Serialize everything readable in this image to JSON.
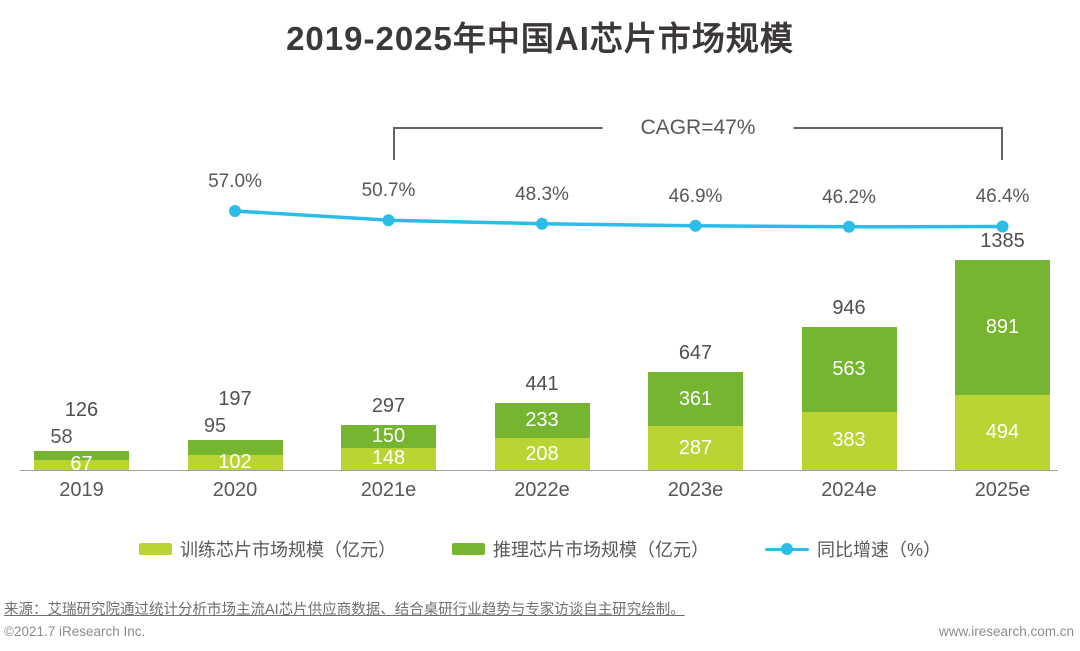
{
  "title": "2019-2025年中国AI芯片市场规模",
  "chart_data": {
    "type": "bar",
    "subtype": "stacked-bar-with-line",
    "title": "2019-2025年中国AI芯片市场规模",
    "categories": [
      "2019",
      "2020",
      "2021e",
      "2022e",
      "2023e",
      "2024e",
      "2025e"
    ],
    "series": [
      {
        "name": "训练芯片市场规模（亿元）",
        "color": "#bad433",
        "values": [
          67,
          102,
          148,
          208,
          287,
          383,
          494
        ]
      },
      {
        "name": "推理芯片市场规模（亿元）",
        "color": "#76b52f",
        "values": [
          58,
          95,
          150,
          233,
          361,
          563,
          891
        ]
      }
    ],
    "totals": [
      126,
      197,
      297,
      441,
      647,
      946,
      1385
    ],
    "line_series": {
      "name": "同比增速（%）",
      "color": "#2bbce8",
      "values": [
        null,
        57.0,
        50.7,
        48.3,
        46.9,
        46.2,
        46.4
      ],
      "labels": [
        "",
        "57.0%",
        "50.7%",
        "48.3%",
        "46.9%",
        "46.2%",
        "46.4%"
      ]
    },
    "annotation": {
      "label": "CAGR=47%",
      "from": "2021e",
      "to": "2025e"
    },
    "unit": "亿元",
    "legend_position": "bottom",
    "grid": false
  },
  "legend": {
    "train_label": "训练芯片市场规模（亿元）",
    "infer_label": "推理芯片市场规模（亿元）",
    "growth_label": "同比增速（%）"
  },
  "source": "来源：艾瑞研究院通过统计分析市场主流AI芯片供应商数据、结合桌研行业趋势与专家访谈自主研究绘制。",
  "footer": {
    "left": "©2021.7 iResearch Inc.",
    "right": "www.iresearch.com.cn"
  }
}
